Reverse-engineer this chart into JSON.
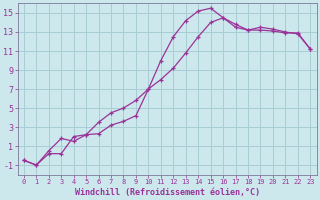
{
  "xlabel": "Windchill (Refroidissement éolien,°C)",
  "bg_color": "#cde8ec",
  "grid_color": "#a8cdd4",
  "line_color": "#993399",
  "spine_color": "#7a7a9a",
  "xlim": [
    -0.5,
    23.5
  ],
  "ylim": [
    -2.0,
    16.0
  ],
  "xticks": [
    0,
    1,
    2,
    3,
    4,
    5,
    6,
    7,
    8,
    9,
    10,
    11,
    12,
    13,
    14,
    15,
    16,
    17,
    18,
    19,
    20,
    21,
    22,
    23
  ],
  "yticks": [
    -1,
    1,
    3,
    5,
    7,
    9,
    11,
    13,
    15
  ],
  "line1_x": [
    0,
    1,
    2,
    3,
    4,
    5,
    6,
    7,
    8,
    9,
    10,
    11,
    12,
    13,
    14,
    15,
    16,
    17,
    18,
    19,
    20,
    21,
    22,
    23
  ],
  "line1_y": [
    -0.5,
    -1.0,
    0.2,
    0.2,
    2.0,
    2.2,
    2.3,
    3.2,
    3.6,
    4.2,
    7.0,
    10.0,
    12.5,
    14.2,
    15.2,
    15.5,
    14.5,
    13.5,
    13.2,
    13.2,
    13.1,
    12.9,
    12.9,
    11.2
  ],
  "line2_x": [
    0,
    1,
    2,
    3,
    4,
    5,
    6,
    7,
    8,
    9,
    10,
    11,
    12,
    13,
    14,
    15,
    16,
    17,
    18,
    19,
    20,
    21,
    22,
    23
  ],
  "line2_y": [
    -0.5,
    -1.0,
    0.5,
    1.8,
    1.5,
    2.2,
    3.5,
    4.5,
    5.0,
    5.8,
    7.0,
    8.0,
    9.2,
    10.8,
    12.5,
    14.0,
    14.5,
    13.8,
    13.2,
    13.5,
    13.3,
    13.0,
    12.8,
    11.2
  ],
  "xlabel_fontsize": 6.0,
  "tick_fontsize_x": 5.0,
  "tick_fontsize_y": 6.0
}
